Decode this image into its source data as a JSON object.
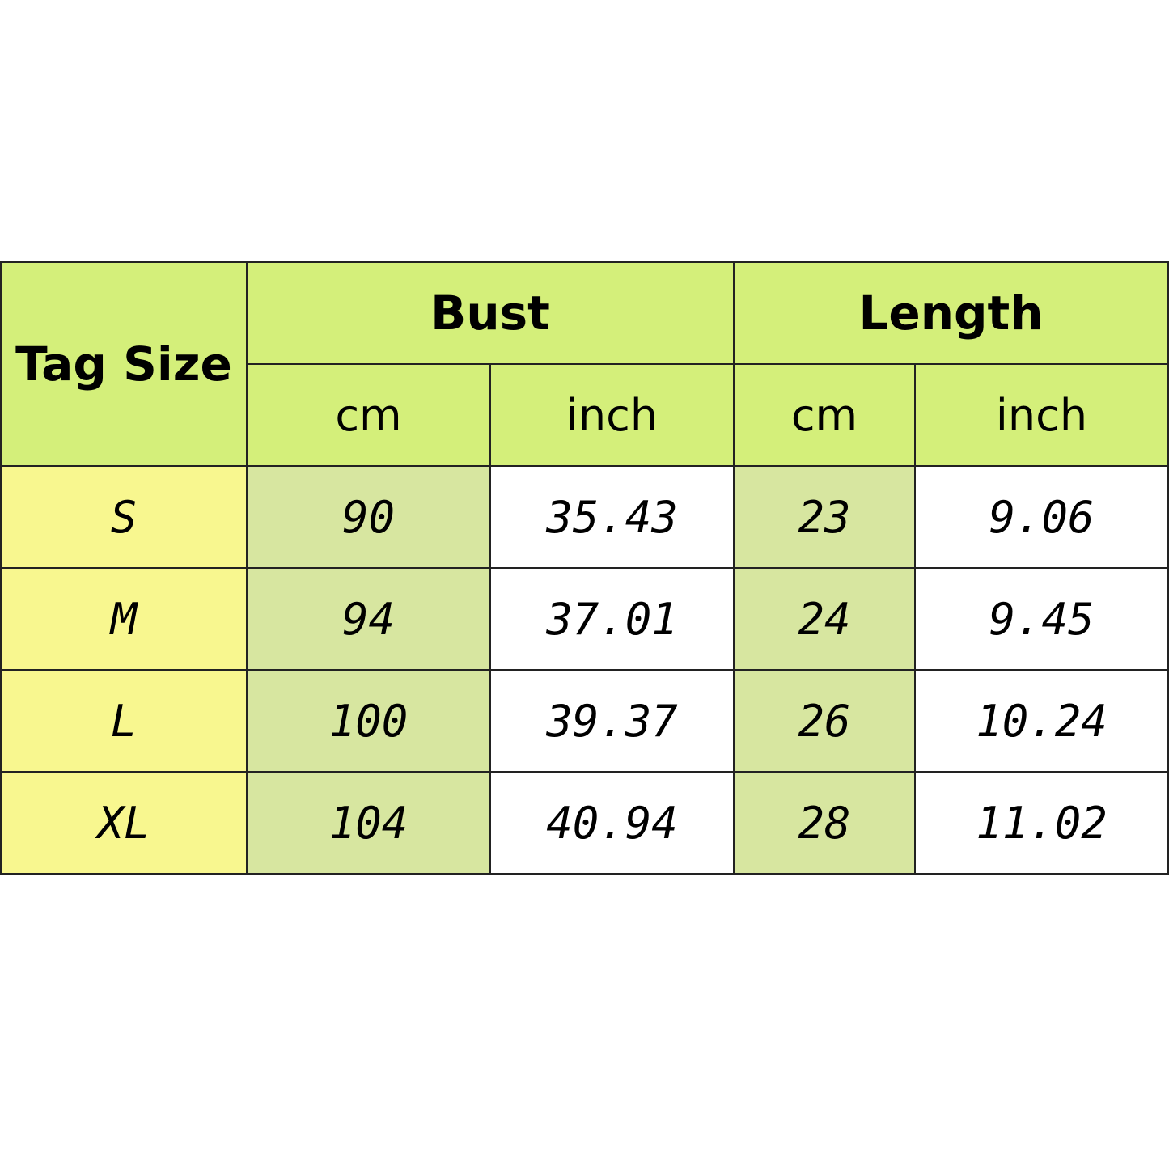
{
  "table": {
    "header": {
      "tag_size": "Tag Size",
      "groups": [
        "Bust",
        "Length"
      ],
      "units": [
        "cm",
        "inch",
        "cm",
        "inch"
      ]
    },
    "rows": [
      [
        "S",
        "90",
        "35.43",
        "23",
        "9.06"
      ],
      [
        "M",
        "94",
        "37.01",
        "24",
        "9.45"
      ],
      [
        "L",
        "100",
        "39.37",
        "26",
        "10.24"
      ],
      [
        "XL",
        "104",
        "40.94",
        "28",
        "11.02"
      ]
    ]
  }
}
